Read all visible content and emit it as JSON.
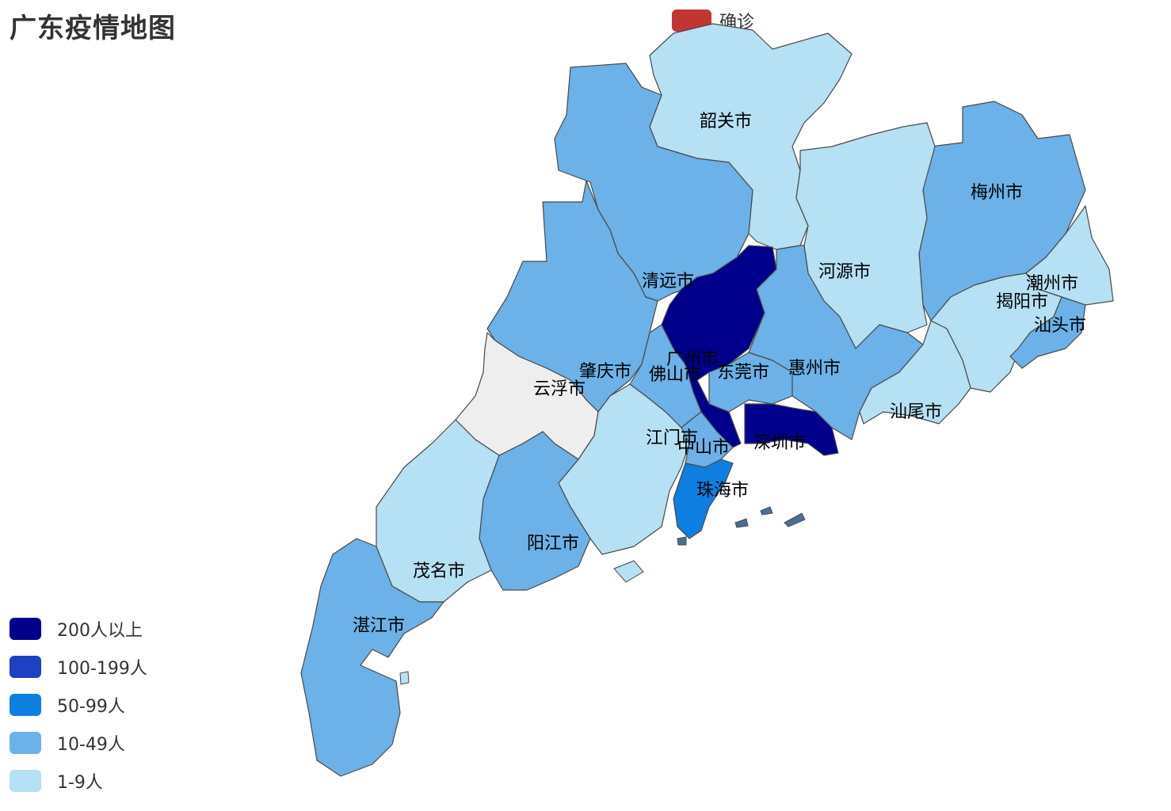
{
  "title": "广东疫情地图",
  "series_legend": {
    "label": "确诊",
    "color": "#c23531"
  },
  "visual_map": [
    {
      "label": "200人以上",
      "color": "#00008b"
    },
    {
      "label": "100-199人",
      "color": "#1d41c2"
    },
    {
      "label": "50-99人",
      "color": "#0e7fe1"
    },
    {
      "label": "10-49人",
      "color": "#6cb1e7"
    },
    {
      "label": "1-9人",
      "color": "#b6e0f3"
    }
  ],
  "no_data_color": "#eeeeee",
  "regions": [
    {
      "name": "韶关市",
      "bucket": 4
    },
    {
      "name": "梅州市",
      "bucket": 3
    },
    {
      "name": "河源市",
      "bucket": 4
    },
    {
      "name": "清远市",
      "bucket": 3
    },
    {
      "name": "潮州市",
      "bucket": 4
    },
    {
      "name": "揭阳市",
      "bucket": 4
    },
    {
      "name": "汕头市",
      "bucket": 3
    },
    {
      "name": "广州市",
      "bucket": 0
    },
    {
      "name": "肇庆市",
      "bucket": 3
    },
    {
      "name": "佛山市",
      "bucket": 3
    },
    {
      "name": "东莞市",
      "bucket": 3
    },
    {
      "name": "惠州市",
      "bucket": 3
    },
    {
      "name": "云浮市",
      "bucket": null
    },
    {
      "name": "汕尾市",
      "bucket": 4
    },
    {
      "name": "江门市",
      "bucket": 4
    },
    {
      "name": "中山市",
      "bucket": 3
    },
    {
      "name": "深圳市",
      "bucket": 0
    },
    {
      "name": "珠海市",
      "bucket": 2
    },
    {
      "name": "阳江市",
      "bucket": 3
    },
    {
      "name": "茂名市",
      "bucket": 4
    },
    {
      "name": "湛江市",
      "bucket": 3
    }
  ]
}
